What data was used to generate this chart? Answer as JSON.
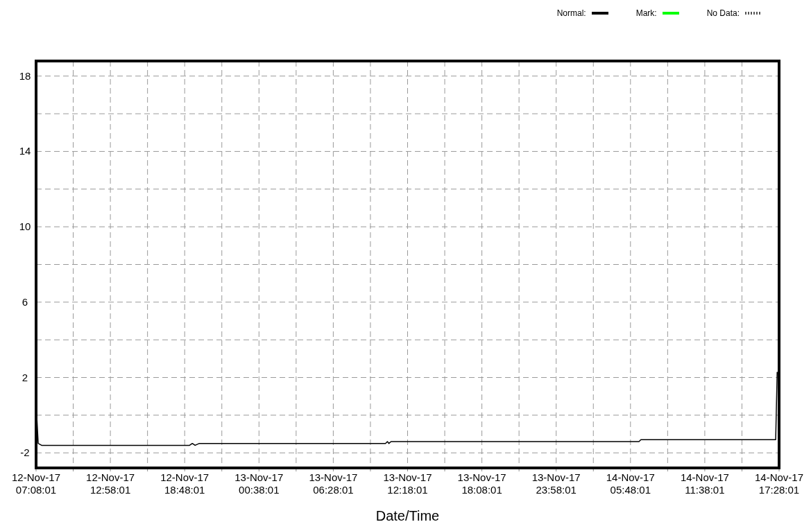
{
  "chart_data": {
    "type": "line",
    "xlabel": "Date/Time",
    "x": [
      "--11-12T07:08:01",
      "--11-12T07:11:01",
      "--11-12T07:18:01",
      "--11-12T07:34:01",
      "--11-12T19:11:01",
      "--11-12T19:24:01",
      "--11-12T19:37:01",
      "--11-12T19:57:01",
      "--11-13T10:34:01",
      "--11-13T10:43:01",
      "--11-13T10:50:01",
      "--11-13T11:00:01",
      "--11-14T06:28:01",
      "--11-14T06:37:01",
      "--11-14T17:12:01",
      "--11-14T17:19:01"
    ],
    "series": [
      {
        "name": "Normal:",
        "color": "#000000",
        "line_style": "solid",
        "values": [
          5,
          0,
          -1.5,
          -1.6,
          -1.6,
          -1.5,
          -1.6,
          -1.5,
          -1.5,
          -1.4,
          -1.5,
          -1.4,
          -1.4,
          -1.3,
          -1.3,
          2.3
        ]
      },
      {
        "name": "Mark:",
        "color": "#00ff00",
        "line_style": "solid",
        "values": [
          null,
          null,
          null,
          null,
          null,
          null,
          null,
          null,
          null,
          null,
          null,
          null,
          null,
          null,
          null,
          null
        ]
      },
      {
        "name": "No Data:",
        "color": "#555555",
        "line_style": "dotted",
        "values": [
          null,
          null,
          null,
          null,
          null,
          null,
          null,
          null,
          null,
          null,
          null,
          null,
          null,
          null,
          null,
          null
        ]
      }
    ],
    "xlim": [
      "--11-12T07:08:01",
      "--11-14T17:28:01"
    ],
    "xticks": [
      {
        "value": "--11-12T07:08:01",
        "label": "12-Nov-17\n07:08:01"
      },
      {
        "value": "--11-12T10:03:01",
        "label": null
      },
      {
        "value": "--11-12T12:58:01",
        "label": "12-Nov-17\n12:58:01"
      },
      {
        "value": "--11-12T15:53:01",
        "label": null
      },
      {
        "value": "--11-12T18:48:01",
        "label": "12-Nov-17\n18:48:01"
      },
      {
        "value": "--11-12T21:43:01",
        "label": null
      },
      {
        "value": "--11-13T00:38:01",
        "label": "13-Nov-17\n00:38:01"
      },
      {
        "value": "--11-13T03:33:01",
        "label": null
      },
      {
        "value": "--11-13T06:28:01",
        "label": "13-Nov-17\n06:28:01"
      },
      {
        "value": "--11-13T09:23:01",
        "label": null
      },
      {
        "value": "--11-13T12:18:01",
        "label": "13-Nov-17\n12:18:01"
      },
      {
        "value": "--11-13T15:13:01",
        "label": null
      },
      {
        "value": "--11-13T18:08:01",
        "label": "13-Nov-17\n18:08:01"
      },
      {
        "value": "--11-13T21:03:01",
        "label": null
      },
      {
        "value": "--11-13T23:58:01",
        "label": "13-Nov-17\n23:58:01"
      },
      {
        "value": "--11-14T02:53:01",
        "label": null
      },
      {
        "value": "--11-14T05:48:01",
        "label": "14-Nov-17\n05:48:01"
      },
      {
        "value": "--11-14T08:43:01",
        "label": null
      },
      {
        "value": "--11-14T11:38:01",
        "label": "14-Nov-17\n11:38:01"
      },
      {
        "value": "--11-14T14:33:01",
        "label": null
      },
      {
        "value": "--11-14T17:28:01",
        "label": "14-Nov-17\n17:28:01"
      }
    ],
    "ylim": [
      -2.8,
      18.8
    ],
    "yticks": [
      -2,
      {
        "value": 0,
        "label": null
      },
      2,
      {
        "value": 4,
        "label": null
      },
      6,
      {
        "value": 8,
        "label": null
      },
      10,
      {
        "value": 12,
        "label": null
      },
      14,
      {
        "value": 16,
        "label": null
      },
      18
    ],
    "grid": true,
    "legend": "top right",
    "marker": "none"
  }
}
